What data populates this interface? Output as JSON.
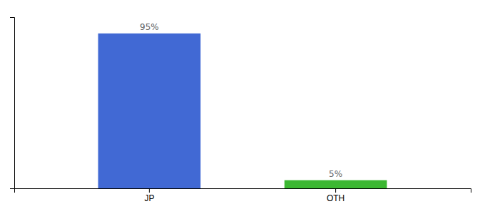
{
  "chart_data": {
    "type": "bar",
    "categories": [
      "JP",
      "OTH"
    ],
    "values": [
      95,
      5
    ],
    "colors": [
      "#4169d4",
      "#3cb832"
    ],
    "data_labels": true,
    "value_labels": [
      "95%",
      "5%"
    ],
    "ylim": [
      0,
      105
    ],
    "yticks": [],
    "grid": false,
    "tick_labels": "x"
  }
}
